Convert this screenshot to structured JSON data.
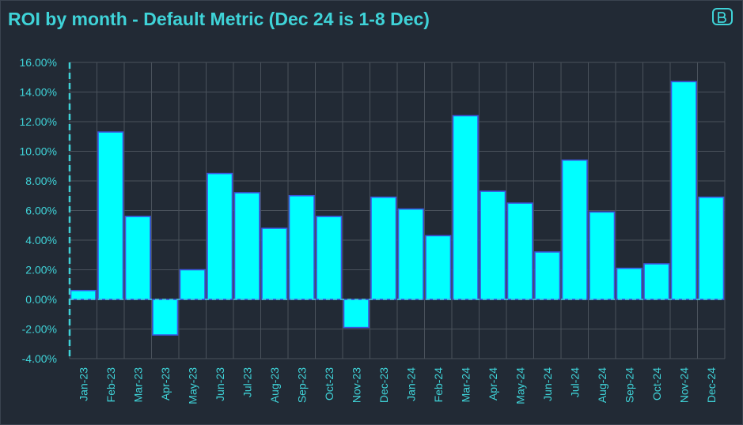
{
  "title": "ROI by month - Default Metric  (Dec 24 is 1-8 Dec)",
  "logo_icon": "brand-logo-icon",
  "colors": {
    "bar_fill": "#00ffff",
    "bar_edge": "#3b55e0",
    "text": "#3fd3d8",
    "grid": "#4a525c",
    "background": "#222a35"
  },
  "chart_data": {
    "type": "bar",
    "categories": [
      "Jan-23",
      "Feb-23",
      "Mar-23",
      "Apr-23",
      "May-23",
      "Jun-23",
      "Jul-23",
      "Aug-23",
      "Sep-23",
      "Oct-23",
      "Nov-23",
      "Dec-23",
      "Jan-24",
      "Feb-24",
      "Mar-24",
      "Apr-24",
      "May-24",
      "Jun-24",
      "Jul-24",
      "Aug-24",
      "Sep-24",
      "Oct-24",
      "Nov-24",
      "Dec-24"
    ],
    "values": [
      0.6,
      11.3,
      5.6,
      -2.4,
      2.0,
      8.5,
      7.2,
      4.8,
      7.0,
      5.6,
      -1.9,
      6.9,
      6.1,
      4.3,
      12.4,
      7.3,
      6.5,
      3.2,
      9.4,
      5.9,
      2.1,
      2.4,
      14.7,
      6.9
    ],
    "y_tick_labels": [
      "16.00%",
      "14.00%",
      "12.00%",
      "10.00%",
      "8.00%",
      "6.00%",
      "4.00%",
      "2.00%",
      "0.00%",
      "-2.00%",
      "-4.00%"
    ],
    "ylim": [
      -4,
      16
    ],
    "grid": true,
    "legend": "none"
  }
}
